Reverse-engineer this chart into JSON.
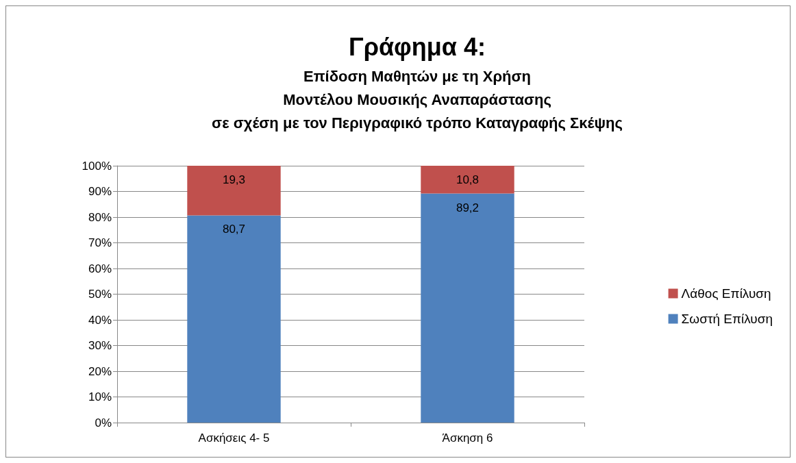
{
  "chart_data": {
    "type": "bar",
    "title": "Γράφημα 4:",
    "subtitle": "Επίδοση Μαθητών με τη Χρήση\nΜοντέλου Μουσικής Αναπαράστασης\nσε σχέση με τον Περιγραφικό τρόπο Καταγραφής Σκέψης",
    "categories": [
      "Ασκήσεις 4- 5",
      "Άσκηση 6"
    ],
    "stacked": true,
    "series": [
      {
        "name": "Σωστή Επίλυση",
        "color": "#4f81bd",
        "values": [
          80.7,
          89.2
        ],
        "value_labels": [
          "80,7",
          "89,2"
        ]
      },
      {
        "name": "Λάθος Επίλυση",
        "color": "#c0504d",
        "values": [
          19.3,
          10.8
        ],
        "value_labels": [
          "19,3",
          "10,8"
        ]
      }
    ],
    "ylim": [
      0,
      100
    ],
    "yticks": [
      {
        "value": 0,
        "label": "0%"
      },
      {
        "value": 10,
        "label": "10%"
      },
      {
        "value": 20,
        "label": "20%"
      },
      {
        "value": 30,
        "label": "30%"
      },
      {
        "value": 40,
        "label": "40%"
      },
      {
        "value": 50,
        "label": "50%"
      },
      {
        "value": 60,
        "label": "60%"
      },
      {
        "value": 70,
        "label": "70%"
      },
      {
        "value": 80,
        "label": "80%"
      },
      {
        "value": 90,
        "label": "90%"
      },
      {
        "value": 100,
        "label": "100%"
      }
    ],
    "grid": "y",
    "legend": "right"
  }
}
